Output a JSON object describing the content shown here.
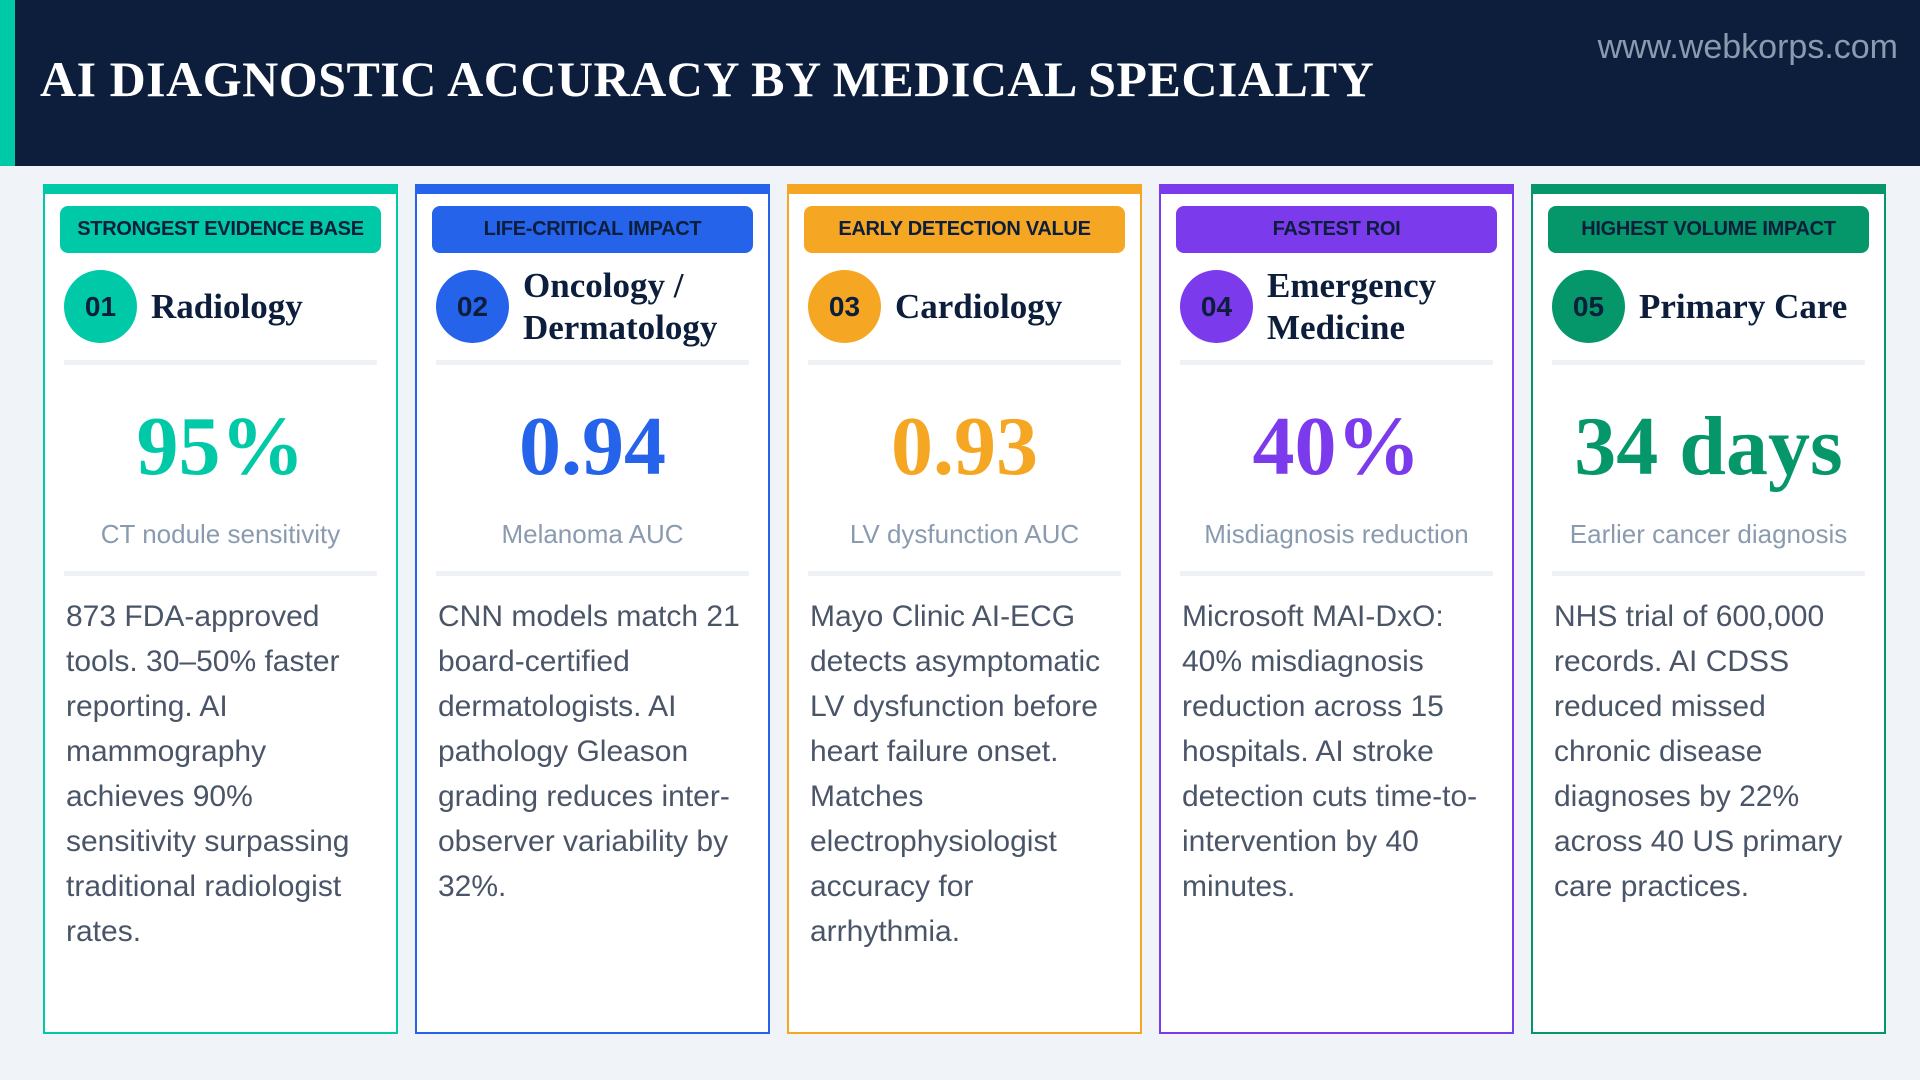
{
  "header": {
    "title": "AI DIAGNOSTIC ACCURACY BY MEDICAL SPECIALTY",
    "website": "www.webkorps.com"
  },
  "colors": {
    "header_bg": "#0c1e3b",
    "teal": "#00c9a7",
    "blue": "#2563eb",
    "orange": "#f5a623",
    "purple": "#7c3aed",
    "green": "#059669"
  },
  "cards": [
    {
      "badge": "STRONGEST EVIDENCE BASE",
      "number": "01",
      "specialty": "Radiology",
      "metric": "95%",
      "metric_label": "CT nodule sensitivity",
      "color": "#00c9a7",
      "description": "873 FDA-approved tools. 30–50% faster reporting. AI mammography achieves 90% sensitivity surpassing traditional radiologist rates."
    },
    {
      "badge": "LIFE-CRITICAL IMPACT",
      "number": "02",
      "specialty": "Oncology / Dermatology",
      "metric": "0.94",
      "metric_label": "Melanoma AUC",
      "color": "#2563eb",
      "description": "CNN models match 21 board-certified dermatologists. AI pathology Gleason grading reduces inter-observer variability by 32%."
    },
    {
      "badge": "EARLY DETECTION VALUE",
      "number": "03",
      "specialty": "Cardiology",
      "metric": "0.93",
      "metric_label": "LV dysfunction AUC",
      "color": "#f5a623",
      "description": "Mayo Clinic AI-ECG detects asymptomatic LV dysfunction before heart failure onset. Matches electrophysiologist accuracy for arrhythmia."
    },
    {
      "badge": "FASTEST ROI",
      "number": "04",
      "specialty": "Emergency Medicine",
      "metric": "40%",
      "metric_label": "Misdiagnosis reduction",
      "color": "#7c3aed",
      "description": "Microsoft MAI-DxO: 40% misdiagnosis reduction across 15 hospitals. AI stroke detection cuts time-to-intervention by 40 minutes."
    },
    {
      "badge": "HIGHEST VOLUME IMPACT",
      "number": "05",
      "specialty": "Primary Care",
      "metric": "34 days",
      "metric_label": "Earlier cancer diagnosis",
      "color": "#059669",
      "description": "NHS trial of 600,000 records. AI CDSS reduced missed chronic disease diagnoses by 22% across 40 US primary care practices."
    }
  ]
}
